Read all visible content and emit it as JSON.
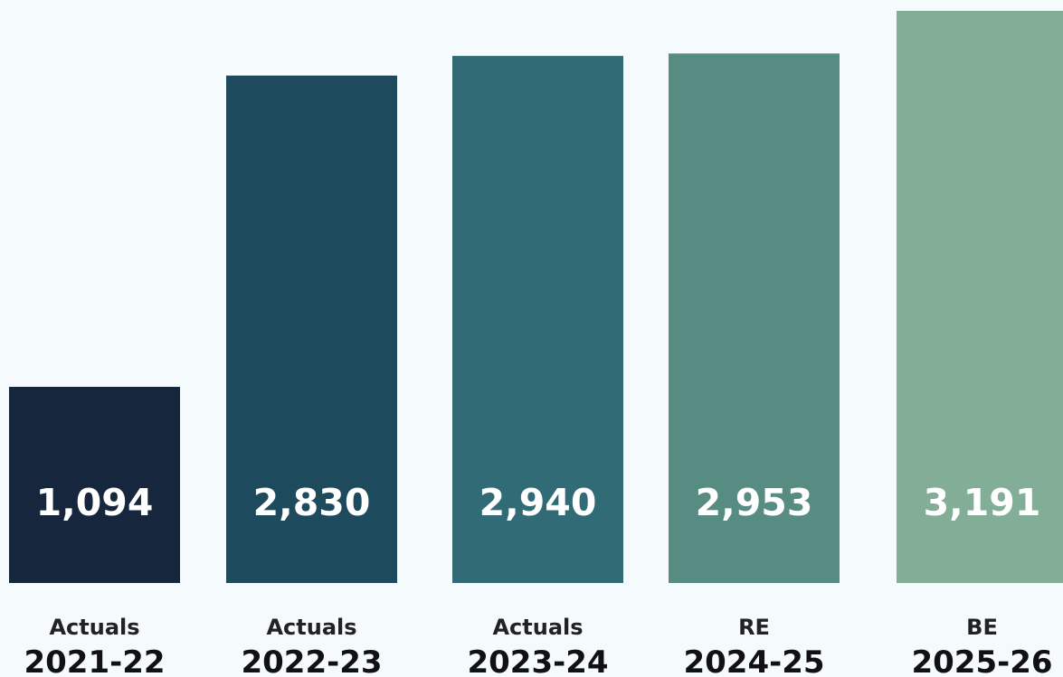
{
  "chart_data": {
    "type": "bar",
    "categories": [
      {
        "kind": "Actuals",
        "year": "2021-22"
      },
      {
        "kind": "Actuals",
        "year": "2022-23"
      },
      {
        "kind": "Actuals",
        "year": "2023-24"
      },
      {
        "kind": "RE",
        "year": "2024-25"
      },
      {
        "kind": "BE",
        "year": "2025-26"
      }
    ],
    "values": [
      1094,
      2830,
      2940,
      2953,
      3191
    ],
    "value_labels": [
      "1,094",
      "2,830",
      "2,940",
      "2,953",
      "3,191"
    ],
    "colors": [
      "#15263d",
      "#1e4a5d",
      "#316b76",
      "#578c83",
      "#82ae97"
    ],
    "title": "",
    "xlabel": "",
    "ylabel": "",
    "grid": false
  }
}
